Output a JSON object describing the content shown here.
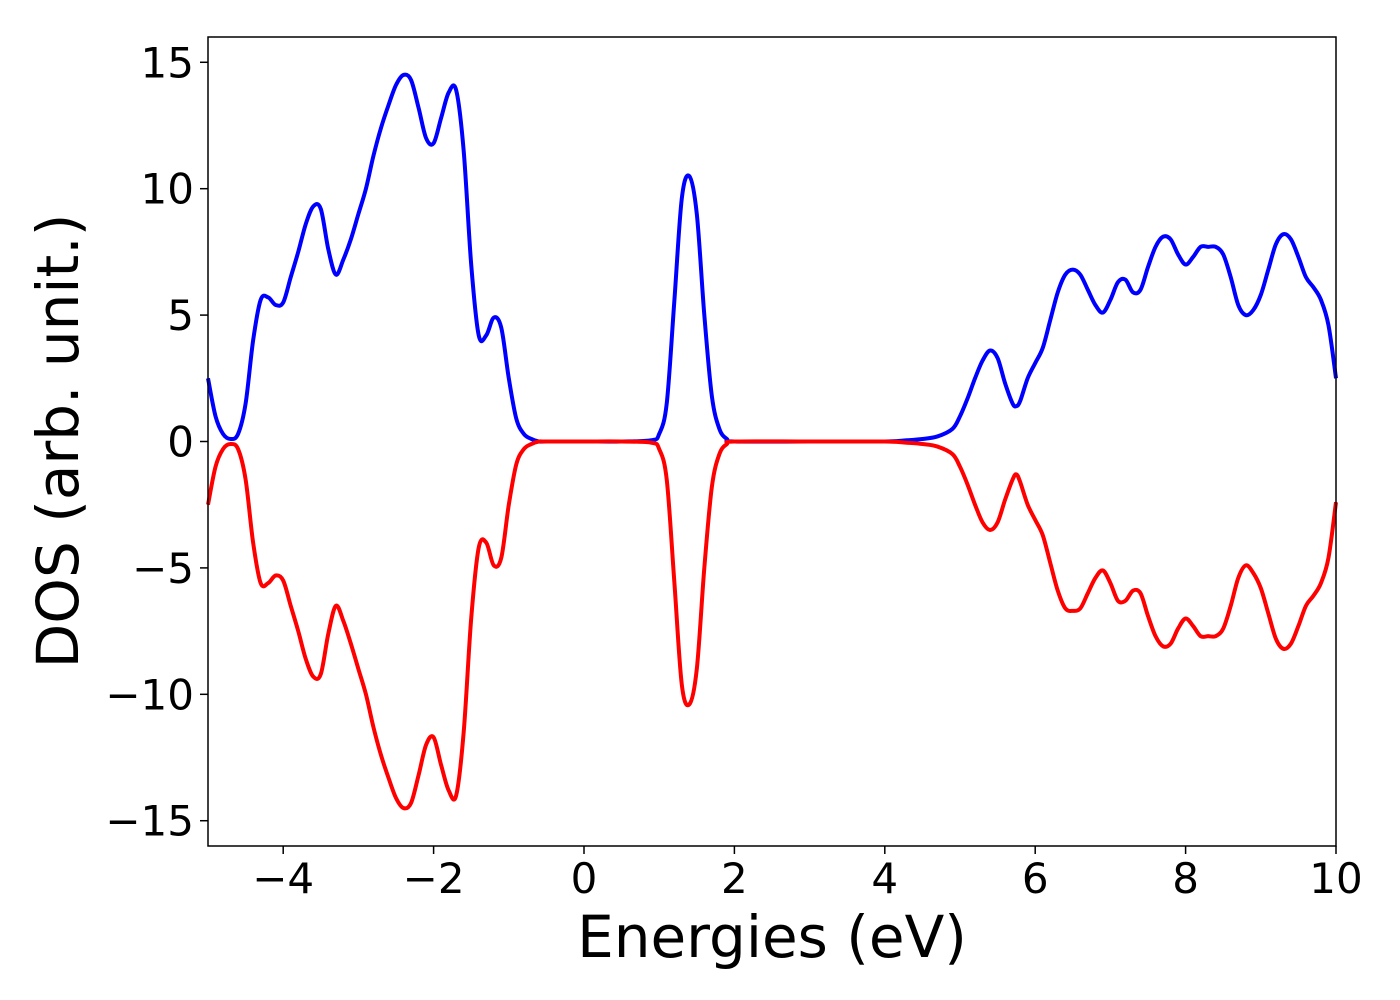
{
  "chart_data": {
    "type": "line",
    "xlabel": "Energies (eV)",
    "ylabel": "DOS (arb. unit.)",
    "xlim": [
      -5,
      10
    ],
    "ylim": [
      -16,
      16
    ],
    "xticks": [
      -4,
      -2,
      0,
      2,
      4,
      6,
      8,
      10
    ],
    "yticks": [
      -15,
      -10,
      -5,
      0,
      5,
      10,
      15
    ],
    "xtick_labels": [
      "−4",
      "−2",
      "0",
      "2",
      "4",
      "6",
      "8",
      "10"
    ],
    "ytick_labels": [
      "−15",
      "−10",
      "−5",
      "0",
      "5",
      "10",
      "15"
    ],
    "grid": false,
    "legend": "none",
    "series": [
      {
        "color": "#0000ff",
        "x": [
          -5.0,
          -4.9,
          -4.8,
          -4.7,
          -4.6,
          -4.5,
          -4.4,
          -4.3,
          -4.2,
          -4.1,
          -4.0,
          -3.9,
          -3.8,
          -3.7,
          -3.6,
          -3.5,
          -3.4,
          -3.3,
          -3.2,
          -3.1,
          -3.0,
          -2.9,
          -2.8,
          -2.7,
          -2.6,
          -2.5,
          -2.4,
          -2.3,
          -2.2,
          -2.1,
          -2.0,
          -1.9,
          -1.8,
          -1.7,
          -1.6,
          -1.5,
          -1.4,
          -1.3,
          -1.2,
          -1.1,
          -1.0,
          -0.9,
          -0.8,
          -0.7,
          -0.6,
          -0.5,
          0.0,
          0.5,
          0.9,
          1.0,
          1.1,
          1.2,
          1.3,
          1.4,
          1.5,
          1.6,
          1.7,
          1.8,
          1.9,
          2.0,
          3.0,
          4.0,
          4.3,
          4.5,
          4.7,
          4.9,
          5.0,
          5.1,
          5.2,
          5.3,
          5.4,
          5.5,
          5.6,
          5.7,
          5.75,
          5.8,
          5.9,
          6.0,
          6.1,
          6.2,
          6.3,
          6.4,
          6.5,
          6.6,
          6.7,
          6.8,
          6.9,
          7.0,
          7.1,
          7.2,
          7.3,
          7.4,
          7.5,
          7.6,
          7.7,
          7.8,
          7.9,
          8.0,
          8.1,
          8.2,
          8.3,
          8.4,
          8.5,
          8.6,
          8.7,
          8.8,
          8.9,
          9.0,
          9.1,
          9.2,
          9.3,
          9.4,
          9.5,
          9.6,
          9.7,
          9.8,
          9.9,
          10.0
        ],
        "y": [
          2.5,
          1.0,
          0.3,
          0.1,
          0.3,
          1.5,
          4.0,
          5.6,
          5.7,
          5.4,
          5.5,
          6.5,
          7.5,
          8.6,
          9.3,
          9.2,
          7.6,
          6.6,
          7.2,
          8.0,
          9.0,
          10.0,
          11.3,
          12.4,
          13.3,
          14.1,
          14.5,
          14.3,
          13.2,
          12.0,
          11.8,
          12.8,
          13.8,
          13.9,
          11.5,
          7.0,
          4.2,
          4.2,
          4.9,
          4.5,
          2.5,
          0.9,
          0.3,
          0.1,
          0.0,
          0.0,
          0.0,
          0.0,
          0.05,
          0.3,
          1.5,
          5.5,
          9.6,
          10.5,
          9.0,
          5.0,
          1.8,
          0.5,
          0.1,
          0.0,
          0.0,
          0.0,
          0.05,
          0.1,
          0.2,
          0.5,
          1.0,
          1.7,
          2.5,
          3.2,
          3.6,
          3.3,
          2.3,
          1.5,
          1.4,
          1.6,
          2.5,
          3.1,
          3.7,
          4.8,
          5.9,
          6.6,
          6.8,
          6.6,
          6.0,
          5.4,
          5.1,
          5.6,
          6.3,
          6.4,
          5.9,
          6.0,
          6.9,
          7.7,
          8.1,
          8.0,
          7.4,
          7.0,
          7.3,
          7.7,
          7.7,
          7.7,
          7.4,
          6.5,
          5.4,
          5.0,
          5.2,
          5.8,
          6.8,
          7.8,
          8.2,
          8.0,
          7.3,
          6.5,
          6.1,
          5.6,
          4.6,
          2.5
        ]
      },
      {
        "color": "#ff0000",
        "x": [
          -5.0,
          -4.9,
          -4.8,
          -4.7,
          -4.6,
          -4.5,
          -4.4,
          -4.3,
          -4.2,
          -4.1,
          -4.0,
          -3.9,
          -3.8,
          -3.7,
          -3.6,
          -3.5,
          -3.4,
          -3.3,
          -3.2,
          -3.1,
          -3.0,
          -2.9,
          -2.8,
          -2.7,
          -2.6,
          -2.5,
          -2.4,
          -2.3,
          -2.2,
          -2.1,
          -2.0,
          -1.9,
          -1.8,
          -1.7,
          -1.6,
          -1.5,
          -1.4,
          -1.3,
          -1.2,
          -1.1,
          -1.0,
          -0.9,
          -0.8,
          -0.7,
          -0.6,
          -0.5,
          0.0,
          0.5,
          0.9,
          1.0,
          1.1,
          1.2,
          1.3,
          1.4,
          1.5,
          1.6,
          1.7,
          1.8,
          1.9,
          2.0,
          3.0,
          4.0,
          4.3,
          4.5,
          4.7,
          4.9,
          5.0,
          5.1,
          5.2,
          5.3,
          5.4,
          5.5,
          5.6,
          5.7,
          5.75,
          5.8,
          5.9,
          6.0,
          6.1,
          6.2,
          6.3,
          6.4,
          6.5,
          6.6,
          6.7,
          6.8,
          6.9,
          7.0,
          7.1,
          7.2,
          7.3,
          7.4,
          7.5,
          7.6,
          7.7,
          7.8,
          7.9,
          8.0,
          8.1,
          8.2,
          8.3,
          8.4,
          8.5,
          8.6,
          8.7,
          8.8,
          8.9,
          9.0,
          9.1,
          9.2,
          9.3,
          9.4,
          9.5,
          9.6,
          9.7,
          9.8,
          9.9,
          10.0
        ],
        "y": [
          -2.5,
          -1.0,
          -0.3,
          -0.1,
          -0.3,
          -1.5,
          -4.0,
          -5.6,
          -5.6,
          -5.3,
          -5.5,
          -6.5,
          -7.5,
          -8.6,
          -9.3,
          -9.2,
          -7.6,
          -6.5,
          -7.1,
          -8.0,
          -9.0,
          -10.0,
          -11.3,
          -12.4,
          -13.3,
          -14.1,
          -14.5,
          -14.3,
          -13.2,
          -12.0,
          -11.7,
          -12.8,
          -13.8,
          -14.0,
          -11.5,
          -7.0,
          -4.2,
          -4.0,
          -4.9,
          -4.6,
          -2.5,
          -0.9,
          -0.3,
          -0.1,
          0.0,
          0.0,
          0.0,
          0.0,
          -0.05,
          -0.3,
          -1.5,
          -5.5,
          -9.6,
          -10.4,
          -9.0,
          -5.0,
          -1.8,
          -0.5,
          -0.1,
          0.0,
          0.0,
          0.0,
          -0.05,
          -0.1,
          -0.2,
          -0.5,
          -1.0,
          -1.7,
          -2.5,
          -3.2,
          -3.5,
          -3.2,
          -2.3,
          -1.5,
          -1.3,
          -1.6,
          -2.5,
          -3.1,
          -3.7,
          -4.8,
          -5.9,
          -6.6,
          -6.7,
          -6.6,
          -6.0,
          -5.4,
          -5.1,
          -5.6,
          -6.3,
          -6.3,
          -5.9,
          -6.0,
          -6.9,
          -7.7,
          -8.1,
          -8.0,
          -7.4,
          -7.0,
          -7.3,
          -7.7,
          -7.7,
          -7.7,
          -7.4,
          -6.5,
          -5.4,
          -4.9,
          -5.2,
          -5.8,
          -6.8,
          -7.8,
          -8.2,
          -8.0,
          -7.3,
          -6.5,
          -6.1,
          -5.6,
          -4.6,
          -2.4
        ]
      }
    ]
  }
}
